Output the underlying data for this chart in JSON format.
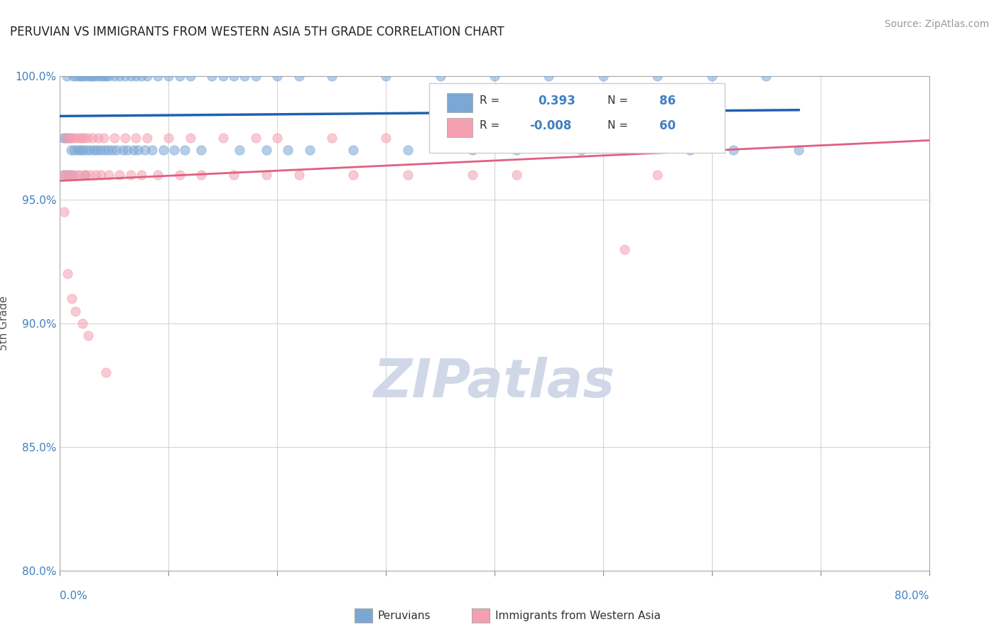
{
  "title": "PERUVIAN VS IMMIGRANTS FROM WESTERN ASIA 5TH GRADE CORRELATION CHART",
  "source": "Source: ZipAtlas.com",
  "ylabel": "5th Grade",
  "xlim": [
    0.0,
    80.0
  ],
  "ylim": [
    80.0,
    100.0
  ],
  "yticks": [
    80.0,
    85.0,
    90.0,
    95.0,
    100.0
  ],
  "xticks": [
    0.0,
    10.0,
    20.0,
    30.0,
    40.0,
    50.0,
    60.0,
    70.0,
    80.0
  ],
  "R_blue": 0.393,
  "N_blue": 86,
  "R_pink": -0.008,
  "N_pink": 60,
  "blue_color": "#7BA7D4",
  "pink_color": "#F4A0B0",
  "blue_line_color": "#2060B0",
  "pink_line_color": "#E06080",
  "background_color": "#ffffff",
  "grid_color": "#cccccc",
  "watermark_color": "#D0D8E8",
  "legend_text_color": "#4080C0",
  "blue_scatter_x": [
    0.6,
    1.2,
    1.5,
    1.8,
    2.0,
    2.2,
    2.5,
    2.8,
    3.0,
    3.2,
    3.5,
    3.8,
    4.0,
    4.2,
    4.5,
    5.0,
    5.5,
    6.0,
    6.5,
    7.0,
    7.5,
    8.0,
    9.0,
    10.0,
    11.0,
    12.0,
    14.0,
    15.0,
    16.0,
    17.0,
    18.0,
    20.0,
    22.0,
    25.0,
    30.0,
    35.0,
    40.0,
    45.0,
    50.0,
    55.0,
    60.0,
    65.0,
    0.3,
    0.5,
    0.8,
    1.0,
    1.3,
    1.6,
    1.9,
    2.1,
    2.4,
    2.7,
    3.1,
    3.4,
    3.7,
    4.1,
    4.4,
    4.8,
    5.2,
    5.8,
    6.2,
    6.8,
    7.2,
    7.8,
    8.5,
    9.5,
    10.5,
    11.5,
    13.0,
    16.5,
    19.0,
    21.0,
    23.0,
    27.0,
    32.0,
    38.0,
    42.0,
    48.0,
    52.0,
    58.0,
    62.0,
    68.0,
    0.4,
    0.7,
    1.1,
    2.3
  ],
  "blue_scatter_y": [
    100.0,
    100.0,
    100.0,
    100.0,
    100.0,
    100.0,
    100.0,
    100.0,
    100.0,
    100.0,
    100.0,
    100.0,
    100.0,
    100.0,
    100.0,
    100.0,
    100.0,
    100.0,
    100.0,
    100.0,
    100.0,
    100.0,
    100.0,
    100.0,
    100.0,
    100.0,
    100.0,
    100.0,
    100.0,
    100.0,
    100.0,
    100.0,
    100.0,
    100.0,
    100.0,
    100.0,
    100.0,
    100.0,
    100.0,
    100.0,
    100.0,
    100.0,
    97.5,
    97.5,
    97.5,
    97.0,
    97.0,
    97.0,
    97.0,
    97.0,
    97.0,
    97.0,
    97.0,
    97.0,
    97.0,
    97.0,
    97.0,
    97.0,
    97.0,
    97.0,
    97.0,
    97.0,
    97.0,
    97.0,
    97.0,
    97.0,
    97.0,
    97.0,
    97.0,
    97.0,
    97.0,
    97.0,
    97.0,
    97.0,
    97.0,
    97.0,
    97.0,
    97.0,
    97.0,
    97.0,
    97.0,
    97.0,
    96.0,
    96.0,
    96.0,
    96.0
  ],
  "pink_scatter_x": [
    0.5,
    0.8,
    1.0,
    1.2,
    1.5,
    1.8,
    2.0,
    2.2,
    2.5,
    3.0,
    3.5,
    4.0,
    5.0,
    6.0,
    7.0,
    8.0,
    10.0,
    12.0,
    15.0,
    18.0,
    20.0,
    25.0,
    30.0,
    35.0,
    40.0,
    45.0,
    50.0,
    0.3,
    0.6,
    0.9,
    1.3,
    1.6,
    1.9,
    2.3,
    2.8,
    3.3,
    3.8,
    4.5,
    5.5,
    6.5,
    7.5,
    9.0,
    11.0,
    13.0,
    16.0,
    19.0,
    22.0,
    27.0,
    32.0,
    38.0,
    42.0,
    55.0,
    0.4,
    0.7,
    1.1,
    1.4,
    2.1,
    2.6,
    4.2,
    52.0
  ],
  "pink_scatter_y": [
    97.5,
    97.5,
    97.5,
    97.5,
    97.5,
    97.5,
    97.5,
    97.5,
    97.5,
    97.5,
    97.5,
    97.5,
    97.5,
    97.5,
    97.5,
    97.5,
    97.5,
    97.5,
    97.5,
    97.5,
    97.5,
    97.5,
    97.5,
    97.5,
    97.5,
    97.5,
    97.5,
    96.0,
    96.0,
    96.0,
    96.0,
    96.0,
    96.0,
    96.0,
    96.0,
    96.0,
    96.0,
    96.0,
    96.0,
    96.0,
    96.0,
    96.0,
    96.0,
    96.0,
    96.0,
    96.0,
    96.0,
    96.0,
    96.0,
    96.0,
    96.0,
    96.0,
    94.5,
    92.0,
    91.0,
    90.5,
    90.0,
    89.5,
    88.0,
    93.0
  ]
}
